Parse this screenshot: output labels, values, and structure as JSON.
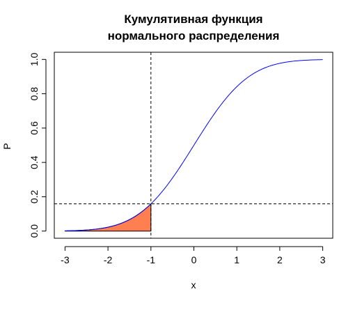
{
  "chart_data": {
    "type": "line",
    "title_lines": [
      "Кумулятивная функция",
      "нормального распределения"
    ],
    "xlabel": "x",
    "ylabel": "P",
    "xlim": [
      -3,
      3
    ],
    "ylim": [
      0,
      1
    ],
    "x_ticks": [
      -3,
      -2,
      -1,
      0,
      1,
      2,
      3
    ],
    "x_tick_labels": [
      "-3",
      "-2",
      "-1",
      "0",
      "1",
      "2",
      "3"
    ],
    "y_ticks": [
      0.0,
      0.2,
      0.4,
      0.6,
      0.8,
      1.0
    ],
    "y_tick_labels": [
      "0.0",
      "0.2",
      "0.4",
      "0.6",
      "0.8",
      "1.0"
    ],
    "series": [
      {
        "color": "#0000ff",
        "x": [
          -3,
          -2.5,
          -2,
          -1.5,
          -1,
          -0.5,
          0,
          0.5,
          1,
          1.5,
          2,
          2.5,
          3
        ],
        "values": [
          0.0013,
          0.0062,
          0.0228,
          0.0668,
          0.1587,
          0.3085,
          0.5,
          0.6915,
          0.8413,
          0.9332,
          0.9772,
          0.9938,
          0.9987
        ]
      }
    ],
    "shaded_region": {
      "x_from": -3,
      "x_to": -1,
      "color": "#ff7f50"
    },
    "reference_lines": {
      "vertical_x": -1,
      "horizontal_y": 0.1587,
      "style": "dashed"
    },
    "grid": false,
    "legend": "none"
  }
}
